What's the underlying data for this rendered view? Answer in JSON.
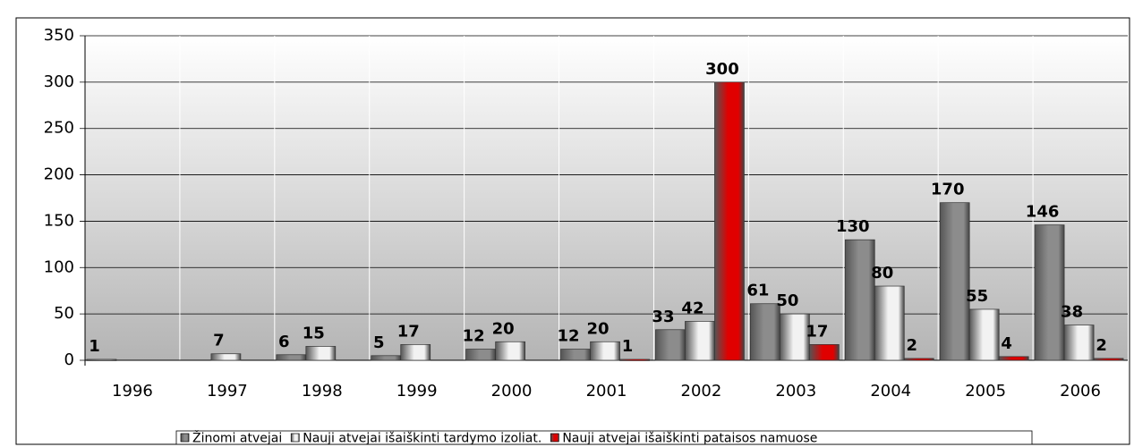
{
  "chart_data": {
    "type": "bar",
    "categories": [
      "1996",
      "1997",
      "1998",
      "1999",
      "2000",
      "2001",
      "2002",
      "2003",
      "2004",
      "2005",
      "2006"
    ],
    "series": [
      {
        "name": "Žinomi atvejai",
        "color": "#8c8c8c",
        "values": [
          1,
          null,
          6,
          5,
          12,
          12,
          33,
          61,
          130,
          170,
          146
        ]
      },
      {
        "name": "Nauji atvejai išaiškinti tardymo izoliat.",
        "color": "#f2f2f2",
        "values": [
          null,
          7,
          15,
          17,
          20,
          20,
          42,
          50,
          80,
          55,
          38
        ]
      },
      {
        "name": "Nauji atvejai išaiškinti pataisos namuose",
        "color": "#e00000",
        "values": [
          null,
          null,
          null,
          null,
          null,
          1,
          300,
          17,
          2,
          4,
          2
        ]
      }
    ],
    "ylim": [
      0,
      350
    ],
    "yticks": [
      0,
      50,
      100,
      150,
      200,
      250,
      300,
      350
    ],
    "grid": true,
    "legend": "bottom"
  }
}
